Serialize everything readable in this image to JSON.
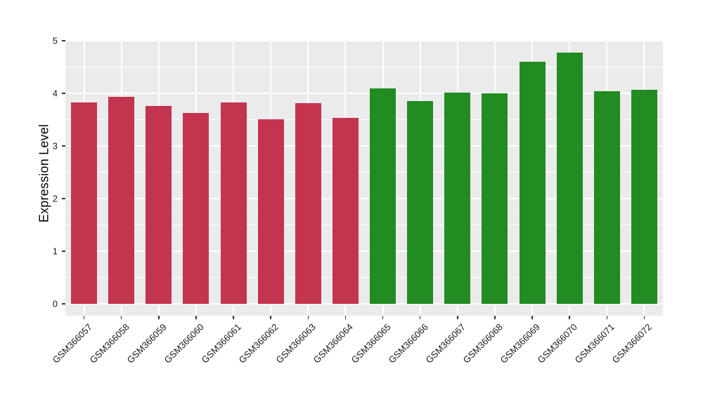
{
  "figure": {
    "background": "#ffffff",
    "panel_background": "#ebebeb",
    "grid_color": "#ffffff",
    "tick_color": "#333333",
    "text_color": "#1a1a1a"
  },
  "chart_data": {
    "type": "bar",
    "title": "",
    "xlabel": "",
    "ylabel": "Expression Level",
    "categories": [
      "GSM366057",
      "GSM366058",
      "GSM366059",
      "GSM366060",
      "GSM366061",
      "GSM366062",
      "GSM366063",
      "GSM366064",
      "GSM366065",
      "GSM366066",
      "GSM366067",
      "GSM366068",
      "GSM366069",
      "GSM366070",
      "GSM366071",
      "GSM366072"
    ],
    "values": [
      3.83,
      3.94,
      3.76,
      3.63,
      3.83,
      3.51,
      3.82,
      3.54,
      4.1,
      3.85,
      4.01,
      4.0,
      4.6,
      4.78,
      4.04,
      4.07
    ],
    "colors": [
      "#c3344f",
      "#c3344f",
      "#c3344f",
      "#c3344f",
      "#c3344f",
      "#c3344f",
      "#c3344f",
      "#c3344f",
      "#228b22",
      "#228b22",
      "#228b22",
      "#228b22",
      "#228b22",
      "#228b22",
      "#228b22",
      "#228b22"
    ],
    "bar_group_colors": {
      "samples_GSM366057_to_GSM366064": "#c3344f",
      "samples_GSM366065_to_GSM366072": "#228b22"
    },
    "ylim": [
      0,
      5
    ],
    "yticks": [
      0,
      1,
      2,
      3,
      4,
      5
    ],
    "minor_ytick_step": 0.5,
    "grid": "on",
    "legend": "none"
  }
}
